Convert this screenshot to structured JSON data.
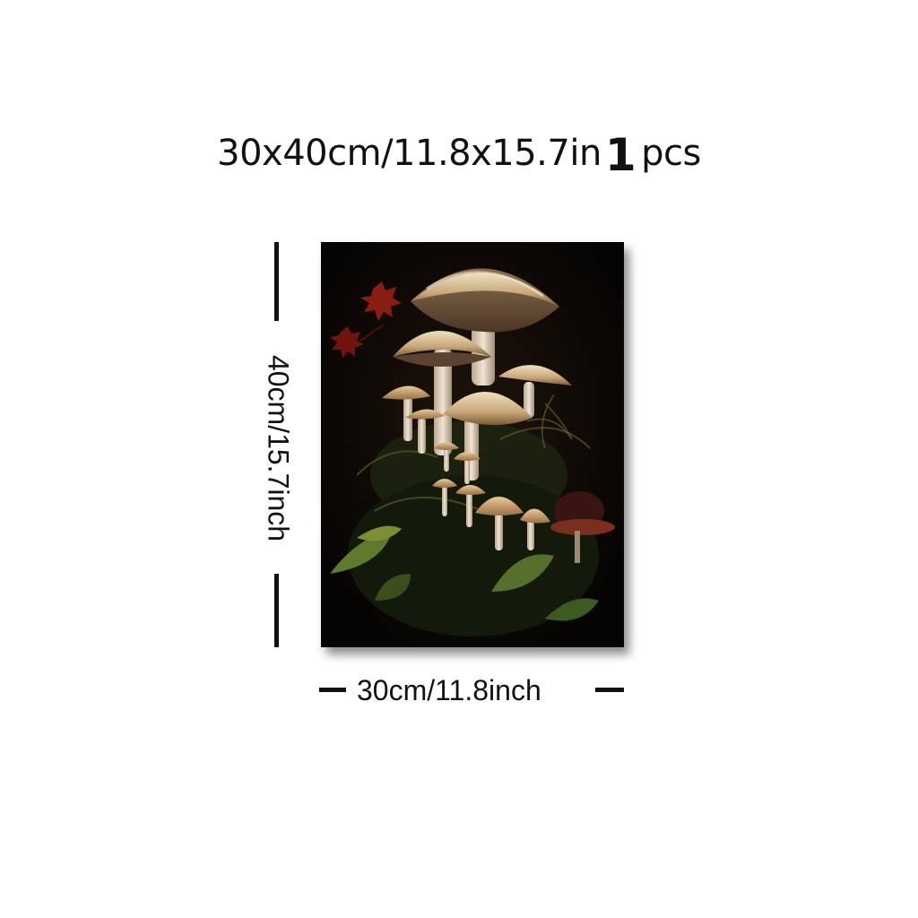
{
  "headline": {
    "size_text": "30x40cm/11.8x15.7in",
    "quantity_number": "1",
    "quantity_unit": "pcs"
  },
  "dimensions": {
    "height_label": "40cm/15.7inch",
    "width_label": "30cm/11.8inch"
  },
  "artwork": {
    "subject": "mushroom-cluster-painting",
    "background_color": "#0b0704"
  }
}
